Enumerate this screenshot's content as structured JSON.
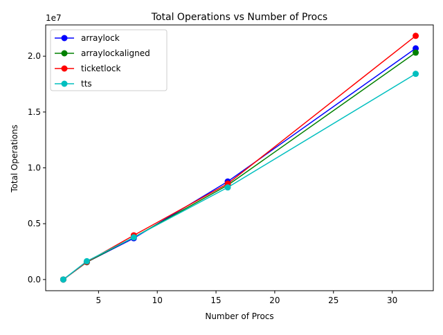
{
  "chart_data": {
    "type": "line",
    "title": "Total Operations vs Number of Procs",
    "xlabel": "Number of Procs",
    "ylabel": "Total Operations",
    "y_offset_label": "1e7",
    "x": [
      2,
      4,
      8,
      16,
      32
    ],
    "xlim": [
      0.5,
      33.5
    ],
    "ylim": [
      -1000000,
      22800000
    ],
    "x_ticks": [
      5,
      10,
      15,
      20,
      25,
      30
    ],
    "x_tick_labels": [
      "5",
      "10",
      "15",
      "20",
      "25",
      "30"
    ],
    "y_ticks": [
      0,
      5000000,
      10000000,
      15000000,
      20000000
    ],
    "y_tick_labels": [
      "0.0",
      "0.5",
      "1.0",
      "1.5",
      "2.0"
    ],
    "grid": false,
    "legend_position": "top-left",
    "series": [
      {
        "name": "arraylock",
        "color": "#0000ff",
        "values": [
          0,
          1560000,
          3700000,
          8780000,
          20700000
        ]
      },
      {
        "name": "arraylockaligned",
        "color": "#008000",
        "values": [
          0,
          1560000,
          3780000,
          8450000,
          20320000
        ]
      },
      {
        "name": "ticketlock",
        "color": "#ff0000",
        "values": [
          0,
          1580000,
          3960000,
          8580000,
          21820000
        ]
      },
      {
        "name": "tts",
        "color": "#00bfbf",
        "values": [
          0,
          1640000,
          3780000,
          8250000,
          18420000
        ]
      }
    ]
  }
}
